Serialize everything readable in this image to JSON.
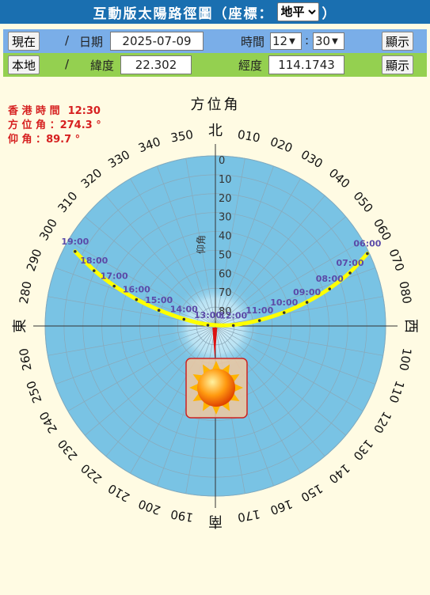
{
  "header": {
    "title": "互動版太陽路徑圖（座標：",
    "coord_select": "地平",
    "title_end": "）"
  },
  "controls": {
    "now_button": "現在",
    "slash1": "/",
    "date_label": "日期",
    "date_value": "2025-07-09",
    "time_label": "時間",
    "hour_value": "12",
    "colon": ":",
    "minute_value": "30",
    "show_button_1": "顯示",
    "local_button": "本地",
    "slash2": "/",
    "lat_label": "緯度",
    "lat_value": "22.302",
    "lon_label": "經度",
    "lon_value": "114.1743",
    "show_button_2": "顯示"
  },
  "info": {
    "time_label": "香 港 時 間",
    "time_value": "12:30",
    "azimuth_label": "方 位 角 ：",
    "azimuth_value": "274.3 °",
    "elevation_label": "仰 角 ：",
    "elevation_value": "89.7 °"
  },
  "diagram": {
    "azimuth_title": "方位角",
    "elevation_title": "仰角",
    "north": "北",
    "east": "東",
    "south": "南",
    "west": "西",
    "azimuth_ticks": [
      "010",
      "020",
      "030",
      "040",
      "050",
      "060",
      "070",
      "080",
      "100",
      "110",
      "120",
      "130",
      "140",
      "150",
      "160",
      "170",
      "190",
      "200",
      "210",
      "220",
      "230",
      "240",
      "250",
      "260",
      "280",
      "290",
      "300",
      "310",
      "320",
      "330",
      "340",
      "350"
    ],
    "elevation_ticks": [
      "0",
      "10",
      "20",
      "30",
      "40",
      "50",
      "60",
      "70",
      "80"
    ],
    "hour_labels": [
      {
        "t": "06:00",
        "az": 64.5,
        "el": 1.0
      },
      {
        "t": "07:00",
        "az": 68.5,
        "el": 13.5
      },
      {
        "t": "08:00",
        "az": 72.0,
        "el": 26.5
      },
      {
        "t": "09:00",
        "az": 75.5,
        "el": 40.0
      },
      {
        "t": "10:00",
        "az": 79.0,
        "el": 53.0
      },
      {
        "t": "11:00",
        "az": 83.0,
        "el": 66.5
      },
      {
        "t": "12:00",
        "az": 88.5,
        "el": 80.5
      },
      {
        "t": "13:00",
        "az": 276.0,
        "el": 86.0
      },
      {
        "t": "14:00",
        "az": 282.0,
        "el": 73.0
      },
      {
        "t": "15:00",
        "az": 285.5,
        "el": 59.0
      },
      {
        "t": "16:00",
        "az": 288.5,
        "el": 46.0
      },
      {
        "t": "17:00",
        "az": 291.5,
        "el": 32.5
      },
      {
        "t": "18:00",
        "az": 294.5,
        "el": 19.5
      },
      {
        "t": "19:00",
        "az": 298.0,
        "el": 6.0
      }
    ],
    "sun": {
      "az": 274.3,
      "el": 89.7
    },
    "colors": {
      "disk": "#79c3e4",
      "path": "#ffff00",
      "label": "#5b4aa8",
      "pointer": "#dd1111",
      "bg": "#fffbe3"
    }
  }
}
